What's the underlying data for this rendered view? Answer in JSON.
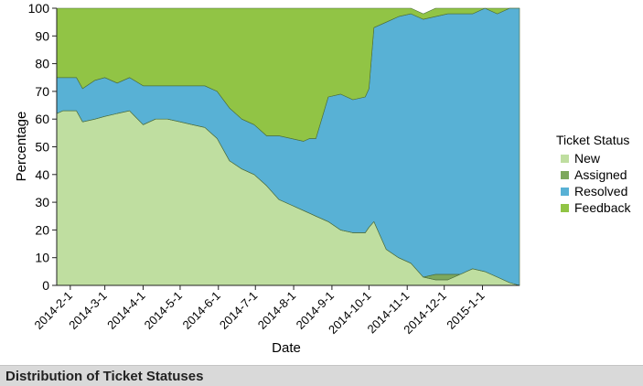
{
  "panel": {
    "title": "Distribution of Ticket Statuses"
  },
  "colors": {
    "new": "#bfdea0",
    "assigned": "#7da85c",
    "resolved": "#58b1d5",
    "feedback": "#91c445",
    "line": "#4a6b3a"
  },
  "chart_data": {
    "type": "area",
    "stacked": true,
    "xlabel": "Date",
    "ylabel": "Percentage",
    "ylim": [
      0,
      100
    ],
    "yticks": [
      0,
      10,
      20,
      30,
      40,
      50,
      60,
      70,
      80,
      90,
      100
    ],
    "xlim": [
      "2014-01-21",
      "2015-01-31"
    ],
    "xticks": [
      "2014-2-1",
      "2014-3-1",
      "2014-4-1",
      "2014-5-1",
      "2014-6-1",
      "2014-7-1",
      "2014-8-1",
      "2014-9-1",
      "2014-10-1",
      "2014-11-1",
      "2014-12-1",
      "2015-1-1"
    ],
    "x": [
      "2014-01-21",
      "2014-01-26",
      "2014-02-06",
      "2014-02-11",
      "2014-02-21",
      "2014-03-01",
      "2014-03-11",
      "2014-03-21",
      "2014-04-01",
      "2014-04-11",
      "2014-04-21",
      "2014-05-01",
      "2014-05-11",
      "2014-05-21",
      "2014-05-31",
      "2014-06-10",
      "2014-06-20",
      "2014-06-30",
      "2014-07-10",
      "2014-07-20",
      "2014-07-30",
      "2014-08-09",
      "2014-08-14",
      "2014-08-19",
      "2014-08-29",
      "2014-09-08",
      "2014-09-18",
      "2014-09-28",
      "2014-10-01",
      "2014-10-05",
      "2014-10-15",
      "2014-10-25",
      "2014-11-04",
      "2014-11-14",
      "2014-11-24",
      "2014-12-04",
      "2014-12-14",
      "2014-12-24",
      "2015-01-03",
      "2015-01-13",
      "2015-01-23",
      "2015-01-31"
    ],
    "series": [
      {
        "name": "New",
        "values": [
          62,
          63,
          63,
          59,
          60,
          61,
          62,
          63,
          58,
          60,
          60,
          59,
          58,
          57,
          53,
          45,
          42,
          40,
          36,
          31,
          29,
          27,
          26,
          25,
          23,
          20,
          19,
          19,
          21,
          23,
          13,
          10,
          8,
          3,
          2,
          2,
          4,
          6,
          5,
          3,
          1,
          0
        ]
      },
      {
        "name": "Assigned",
        "values": [
          0,
          0,
          0,
          0,
          0,
          0,
          0,
          0,
          0,
          0,
          0,
          0,
          0,
          0,
          0,
          0,
          0,
          0,
          0,
          0,
          0,
          0,
          0,
          0,
          0,
          0,
          0,
          0,
          0,
          0,
          0,
          0,
          0,
          0,
          2,
          2,
          0,
          0,
          0,
          0,
          0,
          0
        ]
      },
      {
        "name": "Resolved",
        "values": [
          13,
          12,
          12,
          12,
          14,
          14,
          11,
          12,
          14,
          12,
          12,
          13,
          14,
          15,
          17,
          19,
          18,
          18,
          18,
          23,
          24,
          25,
          27,
          28,
          45,
          49,
          48,
          49,
          50,
          70,
          82,
          87,
          90,
          93,
          93,
          94,
          94,
          92,
          95,
          95,
          99,
          100
        ]
      },
      {
        "name": "Feedback",
        "values": [
          25,
          25,
          25,
          29,
          26,
          25,
          27,
          25,
          28,
          28,
          28,
          28,
          28,
          28,
          30,
          36,
          40,
          42,
          46,
          46,
          47,
          48,
          47,
          47,
          32,
          31,
          33,
          32,
          29,
          7,
          5,
          3,
          2,
          2,
          3,
          2,
          2,
          2,
          0,
          2,
          0,
          0
        ]
      }
    ],
    "legend": {
      "title": "Ticket Status",
      "position": "right"
    },
    "grid": false
  }
}
